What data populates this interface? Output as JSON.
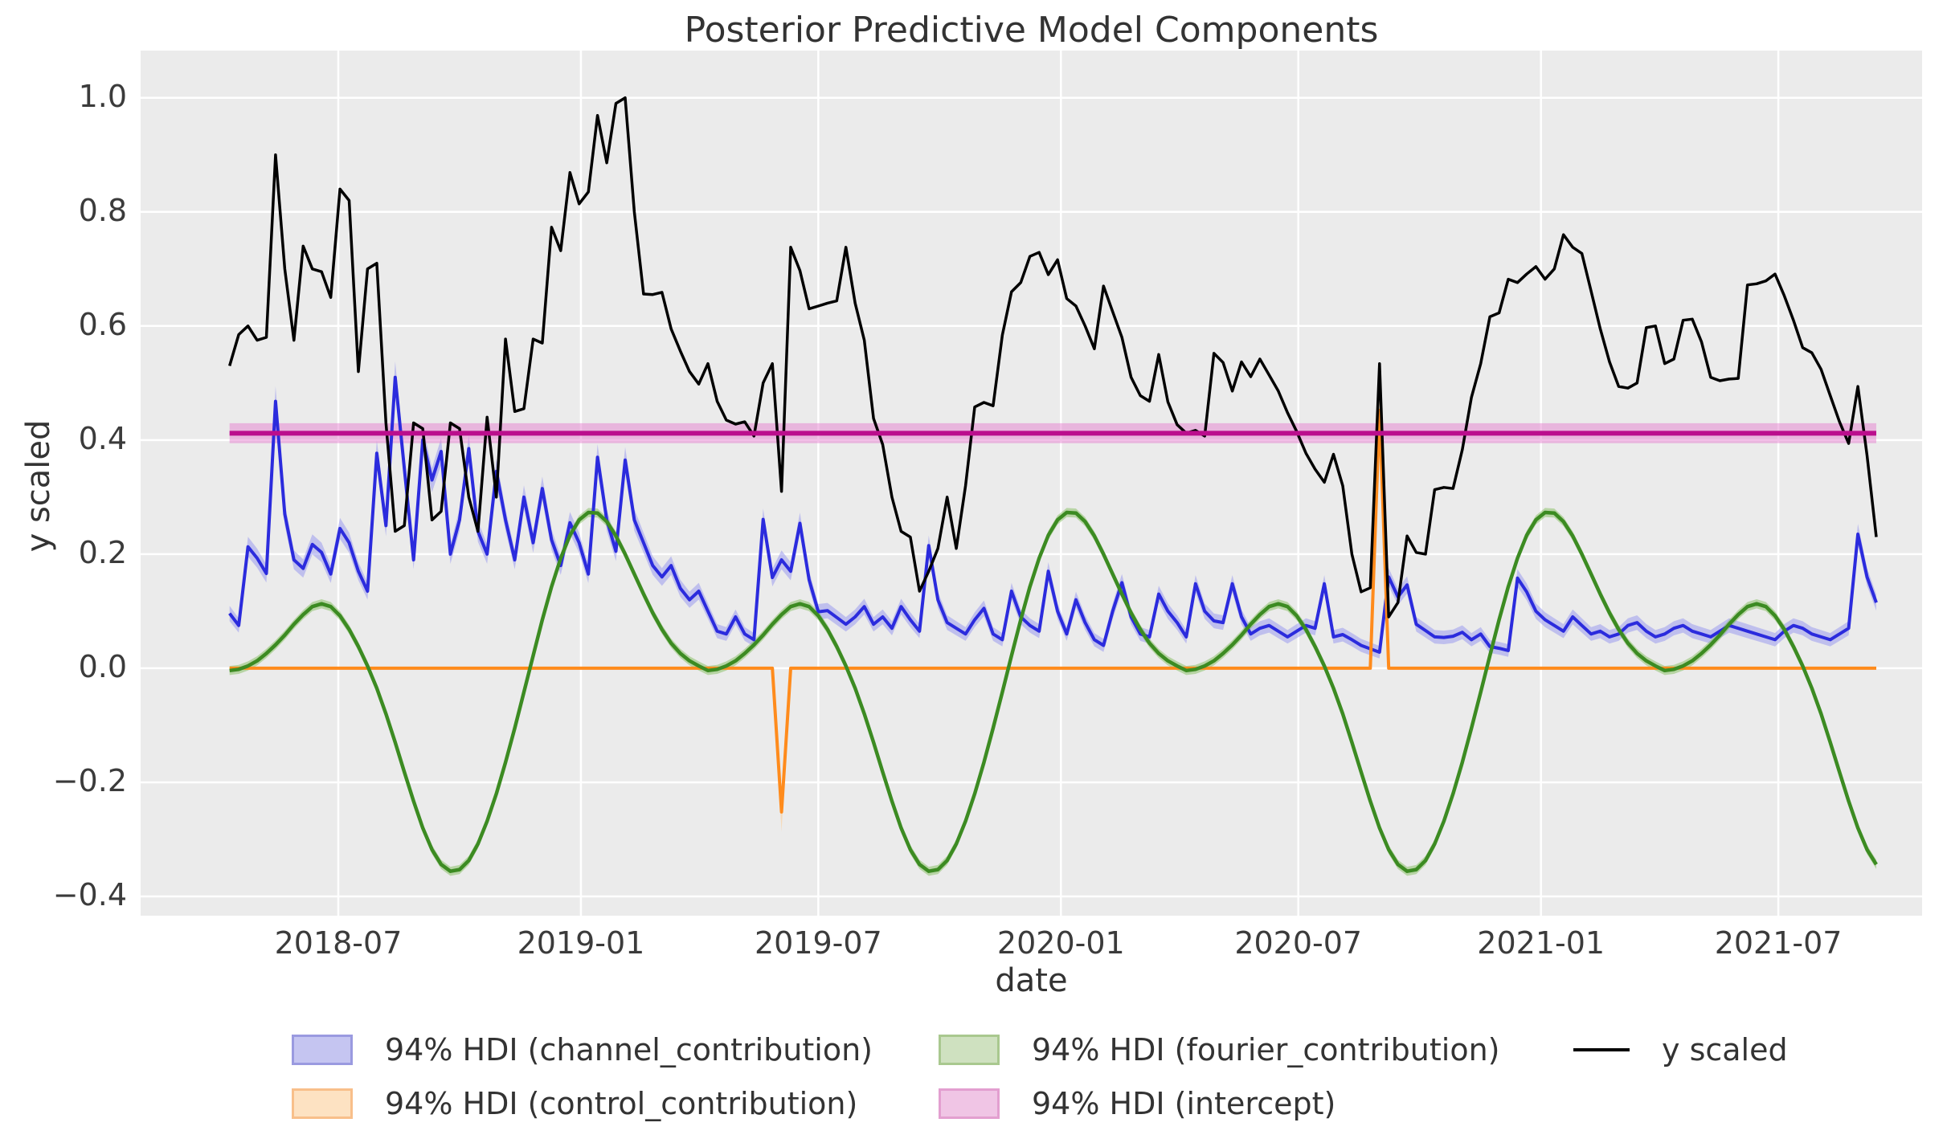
{
  "title": "Posterior Predictive Model Components",
  "axes": {
    "xlabel": "date",
    "ylabel": "y scaled",
    "x_ticks": [
      {
        "v": 2018.4945,
        "label": "2018-07"
      },
      {
        "v": 2019.0,
        "label": "2019-01"
      },
      {
        "v": 2019.4945,
        "label": "2019-07"
      },
      {
        "v": 2020.0,
        "label": "2020-01"
      },
      {
        "v": 2020.4945,
        "label": "2020-07"
      },
      {
        "v": 2021.0,
        "label": "2021-01"
      },
      {
        "v": 2021.4945,
        "label": "2021-07"
      }
    ],
    "y_ticks": [
      {
        "v": 1.0,
        "label": "1.0"
      },
      {
        "v": 0.8,
        "label": "0.8"
      },
      {
        "v": 0.6,
        "label": "0.6"
      },
      {
        "v": 0.4,
        "label": "0.4"
      },
      {
        "v": 0.2,
        "label": "0.2"
      },
      {
        "v": 0.0,
        "label": "0.0"
      },
      {
        "v": -0.2,
        "label": "−0.2"
      },
      {
        "v": -0.4,
        "label": "−0.4"
      }
    ],
    "xlim": [
      2018.0827,
      2021.794
    ],
    "ylim": [
      -0.4338,
      1.0827
    ],
    "grid": "white",
    "axes_bg": "#ebebeb"
  },
  "legend": {
    "items": [
      {
        "label": "94% HDI (channel_contribution)",
        "fill": "#c5c5f1",
        "edge": "#9a9ae0",
        "kind": "patch"
      },
      {
        "label": "94% HDI (control_contribution)",
        "fill": "#fde2c2",
        "edge": "#f8bf8a",
        "kind": "patch"
      },
      {
        "label": "94% HDI (fourier_contribution)",
        "fill": "#cfe1c0",
        "edge": "#a9c88f",
        "kind": "patch"
      },
      {
        "label": "94% HDI (intercept)",
        "fill": "#f0c5e5",
        "edge": "#e39fd0",
        "kind": "patch"
      },
      {
        "label": "y scaled",
        "line": "#000000",
        "kind": "line"
      }
    ]
  },
  "chart_data": {
    "type": "line",
    "title": "Posterior Predictive Model Components",
    "xlabel": "date",
    "ylabel": "y scaled",
    "x_start_decimal_year": 2018.268,
    "x_step_years": 0.019165,
    "n_points": 180,
    "series": [
      {
        "name": "y_scaled",
        "color": "#000000",
        "linewidth": 3.5,
        "values": [
          0.53,
          0.585,
          0.6,
          0.575,
          0.58,
          0.9,
          0.7,
          0.575,
          0.74,
          0.7,
          0.695,
          0.65,
          0.84,
          0.82,
          0.52,
          0.7,
          0.71,
          0.43,
          0.24,
          0.25,
          0.43,
          0.42,
          0.26,
          0.275,
          0.43,
          0.42,
          0.3,
          0.24,
          0.44,
          0.3,
          0.577,
          0.45,
          0.455,
          0.577,
          0.57,
          0.773,
          0.732,
          0.869,
          0.814,
          0.835,
          0.969,
          0.886,
          0.99,
          1.0,
          0.8,
          0.656,
          0.655,
          0.659,
          0.595,
          0.556,
          0.52,
          0.498,
          0.534,
          0.468,
          0.435,
          0.428,
          0.432,
          0.407,
          0.5,
          0.534,
          0.31,
          0.738,
          0.697,
          0.63,
          0.635,
          0.64,
          0.644,
          0.738,
          0.64,
          0.575,
          0.438,
          0.392,
          0.3,
          0.24,
          0.23,
          0.135,
          0.17,
          0.21,
          0.3,
          0.21,
          0.32,
          0.458,
          0.466,
          0.46,
          0.584,
          0.66,
          0.676,
          0.722,
          0.729,
          0.69,
          0.716,
          0.648,
          0.635,
          0.6,
          0.56,
          0.67,
          0.625,
          0.58,
          0.51,
          0.478,
          0.468,
          0.55,
          0.467,
          0.427,
          0.412,
          0.417,
          0.407,
          0.552,
          0.536,
          0.486,
          0.537,
          0.511,
          0.542,
          0.514,
          0.486,
          0.448,
          0.415,
          0.377,
          0.349,
          0.326,
          0.375,
          0.32,
          0.2,
          0.134,
          0.141,
          0.534,
          0.09,
          0.115,
          0.232,
          0.203,
          0.2,
          0.313,
          0.317,
          0.315,
          0.383,
          0.475,
          0.534,
          0.616,
          0.623,
          0.682,
          0.676,
          0.691,
          0.704,
          0.682,
          0.7,
          0.76,
          0.738,
          0.727,
          0.661,
          0.595,
          0.537,
          0.494,
          0.491,
          0.5,
          0.597,
          0.6,
          0.534,
          0.542,
          0.61,
          0.612,
          0.572,
          0.51,
          0.504,
          0.507,
          0.508,
          0.672,
          0.674,
          0.679,
          0.691,
          0.653,
          0.61,
          0.562,
          0.553,
          0.524,
          0.478,
          0.432,
          0.394,
          0.494,
          0.373,
          0.23
        ]
      },
      {
        "name": "channel_contribution",
        "color": "#2b2bdd",
        "band_color": "#9b9bef",
        "band_opacity": 0.55,
        "linewidth": 4,
        "hdi_halfwidth": {
          "base": 0.01,
          "k": 0.035
        },
        "values": [
          0.096,
          0.075,
          0.213,
          0.193,
          0.166,
          0.468,
          0.27,
          0.19,
          0.175,
          0.217,
          0.203,
          0.165,
          0.245,
          0.22,
          0.17,
          0.135,
          0.377,
          0.25,
          0.51,
          0.35,
          0.19,
          0.4,
          0.33,
          0.38,
          0.2,
          0.26,
          0.385,
          0.24,
          0.2,
          0.345,
          0.26,
          0.19,
          0.3,
          0.22,
          0.315,
          0.225,
          0.18,
          0.255,
          0.22,
          0.165,
          0.37,
          0.26,
          0.205,
          0.365,
          0.26,
          0.22,
          0.18,
          0.16,
          0.18,
          0.14,
          0.12,
          0.135,
          0.1,
          0.065,
          0.06,
          0.09,
          0.06,
          0.05,
          0.261,
          0.159,
          0.19,
          0.17,
          0.254,
          0.155,
          0.099,
          0.101,
          0.089,
          0.077,
          0.09,
          0.108,
          0.077,
          0.09,
          0.07,
          0.108,
          0.085,
          0.065,
          0.215,
          0.12,
          0.08,
          0.07,
          0.06,
          0.085,
          0.105,
          0.06,
          0.05,
          0.135,
          0.09,
          0.075,
          0.065,
          0.17,
          0.1,
          0.06,
          0.12,
          0.08,
          0.05,
          0.04,
          0.1,
          0.15,
          0.09,
          0.06,
          0.055,
          0.13,
          0.1,
          0.08,
          0.055,
          0.148,
          0.1,
          0.083,
          0.08,
          0.148,
          0.09,
          0.06,
          0.07,
          0.075,
          0.065,
          0.055,
          0.065,
          0.075,
          0.07,
          0.148,
          0.055,
          0.059,
          0.05,
          0.04,
          0.034,
          0.028,
          0.16,
          0.125,
          0.146,
          0.077,
          0.066,
          0.055,
          0.054,
          0.056,
          0.063,
          0.05,
          0.06,
          0.038,
          0.035,
          0.031,
          0.158,
          0.134,
          0.1,
          0.085,
          0.075,
          0.065,
          0.09,
          0.075,
          0.06,
          0.065,
          0.055,
          0.06,
          0.075,
          0.08,
          0.065,
          0.055,
          0.06,
          0.07,
          0.075,
          0.065,
          0.06,
          0.055,
          0.065,
          0.075,
          0.07,
          0.065,
          0.06,
          0.055,
          0.05,
          0.065,
          0.075,
          0.07,
          0.06,
          0.055,
          0.05,
          0.06,
          0.07,
          0.235,
          0.16,
          0.115
        ]
      },
      {
        "name": "control_contribution",
        "color": "#ff8b1c",
        "band_color": "#ffc98a",
        "band_opacity": 0.5,
        "linewidth": 4,
        "hdi_halfwidth": {
          "base": 0.002,
          "k": 0.13
        },
        "base_value": 0.0,
        "spikes": [
          {
            "i": 60,
            "v": -0.252
          },
          {
            "i": 125,
            "v": 0.452
          }
        ]
      },
      {
        "name": "fourier_contribution",
        "color": "#3c8b22",
        "band_color": "#77b84d",
        "band_opacity": 0.45,
        "linewidth": 4.5,
        "hdi_halfwidth": {
          "base": 0.008,
          "k": 0.0
        },
        "yearly_cycle_weekly_from_apr08": [
          -0.004,
          -0.002,
          0.004,
          0.013,
          0.026,
          0.041,
          0.058,
          0.077,
          0.094,
          0.108,
          0.113,
          0.108,
          0.092,
          0.068,
          0.038,
          0.004,
          -0.035,
          -0.08,
          -0.13,
          -0.182,
          -0.233,
          -0.28,
          -0.318,
          -0.344,
          -0.356,
          -0.353,
          -0.337,
          -0.308,
          -0.268,
          -0.22,
          -0.165,
          -0.105,
          -0.042,
          0.022,
          0.085,
          0.143,
          0.193,
          0.233,
          0.26,
          0.273,
          0.272,
          0.257,
          0.232,
          0.2,
          0.165,
          0.13,
          0.097,
          0.068,
          0.044,
          0.026,
          0.013,
          0.004
        ]
      }
    ],
    "intercept": {
      "name": "intercept",
      "center": 0.412,
      "hdi_hi": 0.4295,
      "hdi_lo": 0.3945,
      "color": "#bb0e8d",
      "band_color": "#e67fd0",
      "band_opacity": 0.5,
      "linewidth": 6
    }
  }
}
